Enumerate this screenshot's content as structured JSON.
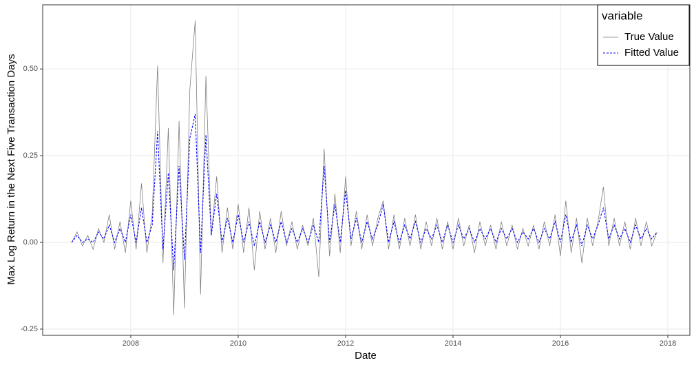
{
  "chart_data": {
    "type": "line",
    "xlabel": "Date",
    "ylabel": "Max Log Return in the Next Five Transaction Days",
    "legend_title": "variable",
    "legend_position": "top-right",
    "grid": true,
    "x": [
      2006.9,
      2007.0,
      2007.1,
      2007.2,
      2007.3,
      2007.4,
      2007.5,
      2007.6,
      2007.7,
      2007.8,
      2007.9,
      2008.0,
      2008.1,
      2008.2,
      2008.3,
      2008.4,
      2008.5,
      2008.6,
      2008.7,
      2008.8,
      2008.9,
      2009.0,
      2009.1,
      2009.2,
      2009.3,
      2009.4,
      2009.5,
      2009.6,
      2009.7,
      2009.8,
      2009.9,
      2010.0,
      2010.1,
      2010.2,
      2010.3,
      2010.4,
      2010.5,
      2010.6,
      2010.7,
      2010.8,
      2010.9,
      2011.0,
      2011.1,
      2011.2,
      2011.3,
      2011.4,
      2011.5,
      2011.6,
      2011.7,
      2011.8,
      2011.9,
      2012.0,
      2012.1,
      2012.2,
      2012.3,
      2012.4,
      2012.5,
      2012.6,
      2012.7,
      2012.8,
      2012.9,
      2013.0,
      2013.1,
      2013.2,
      2013.3,
      2013.4,
      2013.5,
      2013.6,
      2013.7,
      2013.8,
      2013.9,
      2014.0,
      2014.1,
      2014.2,
      2014.3,
      2014.4,
      2014.5,
      2014.6,
      2014.7,
      2014.8,
      2014.9,
      2015.0,
      2015.1,
      2015.2,
      2015.3,
      2015.4,
      2015.5,
      2015.6,
      2015.7,
      2015.8,
      2015.9,
      2016.0,
      2016.1,
      2016.2,
      2016.3,
      2016.4,
      2016.5,
      2016.6,
      2016.7,
      2016.8,
      2016.9,
      2017.0,
      2017.1,
      2017.2,
      2017.3,
      2017.4,
      2017.5,
      2017.6,
      2017.7,
      2017.8
    ],
    "series": [
      {
        "name": "True Value",
        "color": "#7f7f7f",
        "dash": false,
        "values": [
          0.0,
          0.03,
          -0.01,
          0.02,
          -0.02,
          0.04,
          0.0,
          0.08,
          -0.02,
          0.06,
          -0.03,
          0.12,
          -0.02,
          0.17,
          -0.03,
          0.08,
          0.51,
          -0.06,
          0.33,
          -0.21,
          0.35,
          -0.19,
          0.44,
          0.64,
          -0.15,
          0.48,
          0.02,
          0.19,
          -0.03,
          0.1,
          -0.02,
          0.11,
          -0.03,
          0.1,
          -0.08,
          0.09,
          -0.02,
          0.07,
          -0.03,
          0.09,
          -0.01,
          0.06,
          -0.02,
          0.05,
          -0.01,
          0.07,
          -0.1,
          0.27,
          -0.04,
          0.14,
          -0.03,
          0.19,
          -0.01,
          0.09,
          -0.02,
          0.08,
          -0.01,
          0.07,
          0.12,
          -0.02,
          0.08,
          -0.02,
          0.07,
          -0.01,
          0.08,
          -0.02,
          0.06,
          -0.01,
          0.07,
          -0.02,
          0.06,
          -0.02,
          0.07,
          -0.01,
          0.05,
          -0.03,
          0.06,
          -0.01,
          0.05,
          -0.02,
          0.06,
          -0.01,
          0.05,
          -0.02,
          0.04,
          -0.01,
          0.05,
          -0.02,
          0.06,
          -0.01,
          0.08,
          -0.04,
          0.12,
          -0.03,
          0.07,
          -0.06,
          0.07,
          -0.01,
          0.06,
          0.16,
          -0.01,
          0.07,
          -0.01,
          0.06,
          -0.02,
          0.07,
          -0.01,
          0.06,
          -0.01,
          0.03
        ]
      },
      {
        "name": "Fitted Value",
        "color": "#0000ff",
        "dash": true,
        "values": [
          0.0,
          0.02,
          0.0,
          0.01,
          0.0,
          0.03,
          0.01,
          0.05,
          0.0,
          0.04,
          0.0,
          0.08,
          0.0,
          0.1,
          0.0,
          0.05,
          0.32,
          -0.02,
          0.2,
          -0.08,
          0.22,
          -0.05,
          0.3,
          0.37,
          -0.03,
          0.31,
          0.02,
          0.14,
          0.0,
          0.07,
          0.0,
          0.08,
          0.0,
          0.06,
          -0.01,
          0.06,
          0.0,
          0.05,
          0.0,
          0.06,
          0.0,
          0.04,
          0.0,
          0.04,
          0.0,
          0.05,
          0.0,
          0.22,
          0.0,
          0.11,
          0.0,
          0.15,
          0.01,
          0.07,
          0.0,
          0.06,
          0.01,
          0.05,
          0.11,
          0.0,
          0.06,
          0.0,
          0.05,
          0.01,
          0.06,
          0.0,
          0.04,
          0.01,
          0.05,
          0.0,
          0.05,
          0.0,
          0.05,
          0.01,
          0.04,
          0.0,
          0.04,
          0.01,
          0.04,
          0.0,
          0.04,
          0.01,
          0.04,
          0.0,
          0.03,
          0.01,
          0.04,
          0.0,
          0.04,
          0.01,
          0.06,
          0.0,
          0.08,
          0.0,
          0.05,
          -0.01,
          0.05,
          0.01,
          0.05,
          0.1,
          0.01,
          0.05,
          0.01,
          0.04,
          0.0,
          0.05,
          0.01,
          0.04,
          0.01,
          0.03
        ]
      }
    ],
    "xlim": [
      2006.36,
      2018.41
    ],
    "xticks": [
      2008,
      2010,
      2012,
      2014,
      2016,
      2018
    ],
    "ylim": [
      -0.268,
      0.685
    ],
    "yticks": [
      {
        "value": 0.5,
        "label": "0.50"
      },
      {
        "value": 0.25,
        "label": "0.25"
      },
      {
        "value": 0,
        "label": "0.00"
      },
      {
        "value": -0.25,
        "label": "-0.25"
      }
    ]
  }
}
